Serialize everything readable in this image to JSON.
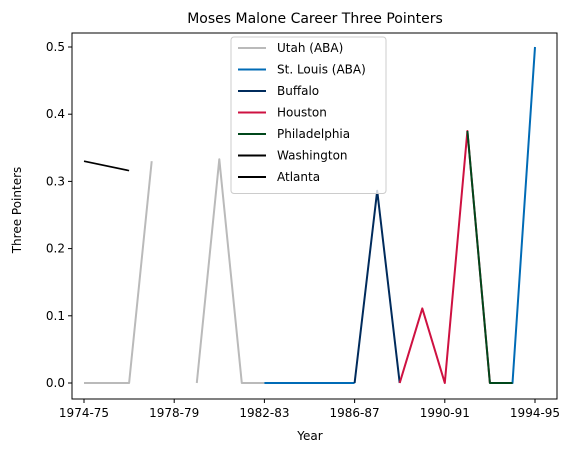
{
  "chart_data": {
    "type": "line",
    "title": "Moses Malone Career Three Pointers",
    "xlabel": "Year",
    "ylabel": "Three Pointers",
    "seasons": [
      "1974-75",
      "1975-76",
      "1976-77",
      "1977-78",
      "1978-79",
      "1979-80",
      "1980-81",
      "1981-82",
      "1982-83",
      "1983-84",
      "1984-85",
      "1985-86",
      "1986-87",
      "1987-88",
      "1988-89",
      "1989-90",
      "1990-91",
      "1991-92",
      "1992-93",
      "1993-94",
      "1994-95"
    ],
    "xticks": [
      "1974-75",
      "1978-79",
      "1982-83",
      "1986-87",
      "1990-91",
      "1994-95"
    ],
    "yticks": [
      "0.0",
      "0.1",
      "0.2",
      "0.3",
      "0.4",
      "0.5"
    ],
    "ylim": [
      -0.025,
      0.525
    ],
    "grid": false,
    "legend_position": "top-center",
    "series": [
      {
        "name": "Utah (ABA)",
        "color": "#bababa",
        "width": 2,
        "points": [
          [
            "1974-75",
            0.0
          ],
          [
            "1976-77",
            0.0
          ],
          [
            "1977-78",
            0.33
          ],
          [
            null,
            null
          ],
          [
            "1979-80",
            0.0
          ],
          [
            "1980-81",
            0.333
          ],
          [
            "1981-82",
            0.0
          ],
          [
            "1982-83",
            0.0
          ]
        ]
      },
      {
        "name": "St. Louis (ABA)",
        "color": "#006bb6",
        "width": 2,
        "points": [
          [
            "1982-83",
            0.0
          ],
          [
            "1983-84",
            0.0
          ],
          [
            "1984-85",
            0.0
          ],
          [
            "1985-86",
            0.0
          ],
          [
            "1986-87",
            0.0
          ],
          [
            null,
            null
          ],
          [
            "1992-93",
            0.0
          ],
          [
            "1993-94",
            0.0
          ],
          [
            "1994-95",
            0.5
          ]
        ]
      },
      {
        "name": "Buffalo",
        "color": "#002b5c",
        "width": 2,
        "points": [
          [
            "1986-87",
            0.0
          ],
          [
            "1987-88",
            0.286
          ],
          [
            "1988-89",
            0.0
          ]
        ]
      },
      {
        "name": "Houston",
        "color": "#ce1141",
        "width": 2,
        "points": [
          [
            "1988-89",
            0.0
          ],
          [
            "1989-90",
            0.111
          ],
          [
            "1990-91",
            0.0
          ],
          [
            "1991-92",
            0.375
          ],
          [
            "1992-93",
            0.0
          ]
        ]
      },
      {
        "name": "Philadelphia",
        "color": "#00471b",
        "width": 2,
        "points": [
          [
            "1991-92",
            0.375
          ],
          [
            "1992-93",
            0.0
          ],
          [
            "1993-94",
            0.0
          ]
        ]
      },
      {
        "name": "Washington",
        "color": "#000000",
        "width": 1.6,
        "points": [
          [
            "1974-75",
            0.33
          ],
          [
            "1976-77",
            0.316
          ]
        ]
      },
      {
        "name": "Atlanta",
        "color": "#000000",
        "width": 2,
        "points": []
      }
    ]
  }
}
